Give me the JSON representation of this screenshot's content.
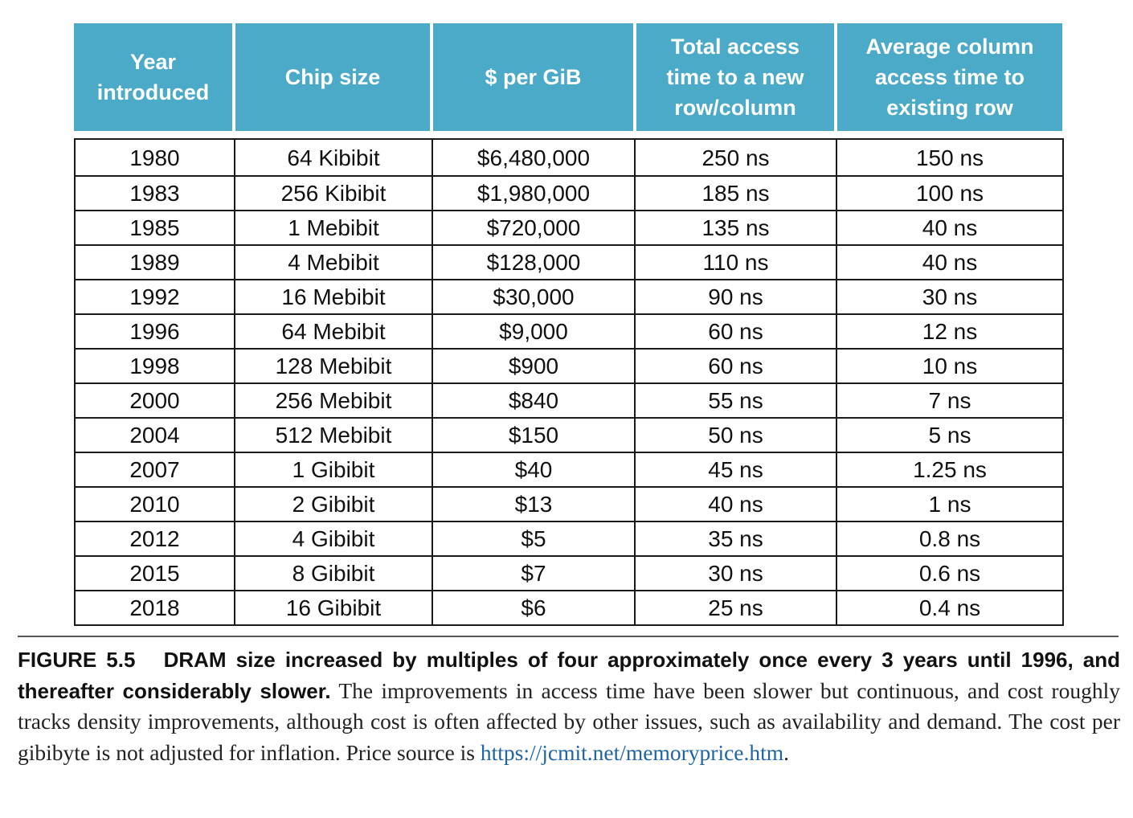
{
  "table": {
    "headers": [
      [
        "Year",
        "introduced"
      ],
      [
        "Chip size"
      ],
      [
        "$ per GiB"
      ],
      [
        "Total access",
        "time to a new",
        "row/column"
      ],
      [
        "Average column",
        "access time to",
        "existing row"
      ]
    ],
    "rows": [
      [
        "1980",
        "64 Kibibit",
        "$6,480,000",
        "250 ns",
        "150 ns"
      ],
      [
        "1983",
        "256 Kibibit",
        "$1,980,000",
        "185 ns",
        "100 ns"
      ],
      [
        "1985",
        "1 Mebibit",
        "$720,000",
        "135 ns",
        "40 ns"
      ],
      [
        "1989",
        "4 Mebibit",
        "$128,000",
        "110 ns",
        "40 ns"
      ],
      [
        "1992",
        "16 Mebibit",
        "$30,000",
        "90 ns",
        "30 ns"
      ],
      [
        "1996",
        "64 Mebibit",
        "$9,000",
        "60 ns",
        "12 ns"
      ],
      [
        "1998",
        "128 Mebibit",
        "$900",
        "60 ns",
        "10 ns"
      ],
      [
        "2000",
        "256 Mebibit",
        "$840",
        "55 ns",
        "7 ns"
      ],
      [
        "2004",
        "512 Mebibit",
        "$150",
        "50 ns",
        "5 ns"
      ],
      [
        "2007",
        "1 Gibibit",
        "$40",
        "45 ns",
        "1.25 ns"
      ],
      [
        "2010",
        "2 Gibibit",
        "$13",
        "40 ns",
        "1 ns"
      ],
      [
        "2012",
        "4 Gibibit",
        "$5",
        "35 ns",
        "0.8 ns"
      ],
      [
        "2015",
        "8 Gibibit",
        "$7",
        "30 ns",
        "0.6 ns"
      ],
      [
        "2018",
        "16 Gibibit",
        "$6",
        "25 ns",
        "0.4 ns"
      ]
    ]
  },
  "caption": {
    "figure_label": "FIGURE 5.5",
    "lead": "DRAM size increased by multiples of four approximately once every 3 years until 1996, and thereafter considerably slower.",
    "body": "The improvements in access time have been slower but continuous, and cost roughly tracks density improvements, although cost is often affected by other issues, such as availability and demand. The cost per gibibyte is not adjusted for inflation. Price source is",
    "link": "https://jcmit.net/memoryprice.htm",
    "end": "."
  },
  "colors": {
    "header_bg": "#4baac8",
    "header_text": "#ffffff",
    "link": "#1f64a8"
  }
}
